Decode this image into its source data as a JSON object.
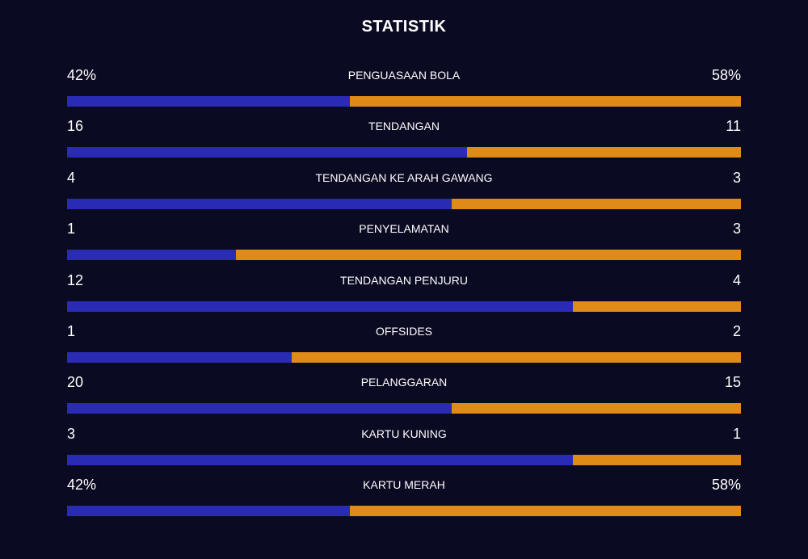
{
  "header": {
    "title": "STATISTIK"
  },
  "colors": {
    "background": "#0a0a22",
    "home_bar": "#2a2bb4",
    "away_bar": "#e08a17",
    "text": "#ffffff"
  },
  "stats": [
    {
      "name": "PENGUASAAN BOLA",
      "home": "42%",
      "away": "58%",
      "home_share": 0.42
    },
    {
      "name": "TENDANGAN",
      "home": "16",
      "away": "11",
      "home_share": 0.593
    },
    {
      "name": "TENDANGAN KE ARAH GAWANG",
      "home": "4",
      "away": "3",
      "home_share": 0.571
    },
    {
      "name": "PENYELAMATAN",
      "home": "1",
      "away": "3",
      "home_share": 0.25
    },
    {
      "name": "TENDANGAN PENJURU",
      "home": "12",
      "away": "4",
      "home_share": 0.75
    },
    {
      "name": "OFFSIDES",
      "home": "1",
      "away": "2",
      "home_share": 0.333
    },
    {
      "name": "PELANGGARAN",
      "home": "20",
      "away": "15",
      "home_share": 0.571
    },
    {
      "name": "KARTU KUNING",
      "home": "3",
      "away": "1",
      "home_share": 0.75
    },
    {
      "name": "KARTU MERAH",
      "home": "42%",
      "away": "58%",
      "home_share": 0.42
    }
  ]
}
